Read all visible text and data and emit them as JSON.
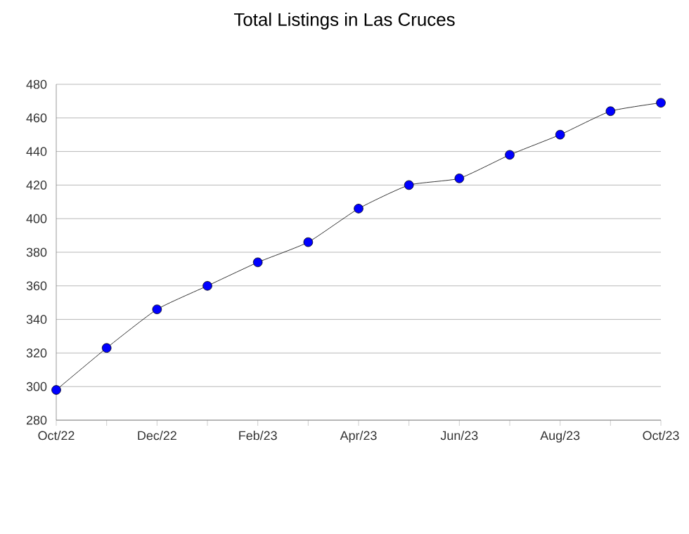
{
  "chart_data": {
    "type": "line",
    "title": "Total Listings in Las Cruces",
    "categories": [
      "Oct/22",
      null,
      "Dec/22",
      null,
      "Feb/23",
      null,
      "Apr/23",
      null,
      "Jun/23",
      null,
      "Aug/23",
      null,
      "Oct/23"
    ],
    "series": [
      {
        "color": "#0000ff",
        "values": [
          298,
          323,
          346,
          360,
          374,
          386,
          406,
          420,
          424,
          438,
          450,
          464,
          469
        ]
      }
    ],
    "ylim": [
      280,
      480
    ],
    "yticks": [
      280,
      300,
      320,
      340,
      360,
      380,
      400,
      420,
      440,
      460,
      480
    ],
    "grid": "y",
    "marker": "circle",
    "line_style": "solid"
  }
}
